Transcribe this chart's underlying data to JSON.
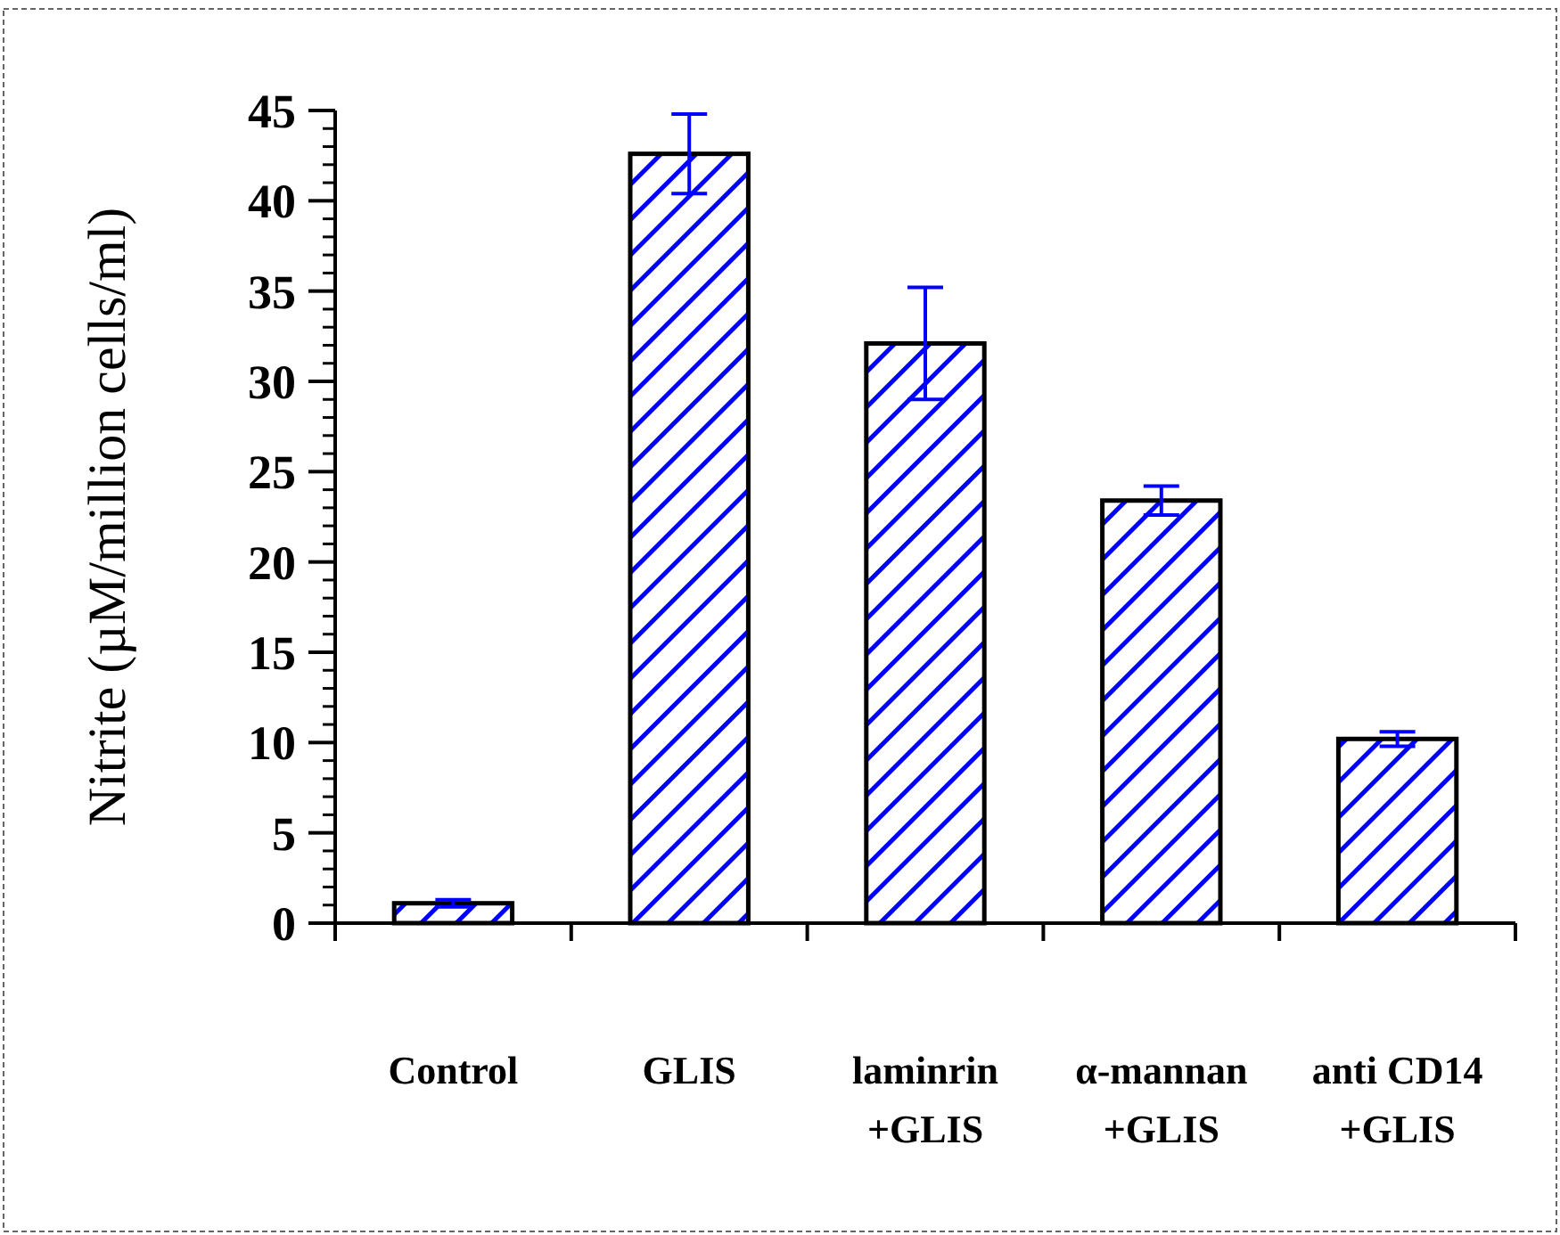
{
  "chart_data": {
    "type": "bar",
    "ylabel": "Nitrite (µM/million cells/ml)",
    "categories": [
      "Control",
      "GLIS",
      "laminrin\n+GLIS",
      "α-mannan\n+GLIS",
      "anti CD14\n+GLIS"
    ],
    "values": [
      1.1,
      42.6,
      32.1,
      23.4,
      10.2
    ],
    "errors": [
      0.2,
      2.2,
      3.1,
      0.8,
      0.4
    ],
    "color": "#0000ff",
    "ylim": [
      0,
      45
    ],
    "yticks": [
      0,
      {
        "value": 1,
        "label": null
      },
      {
        "value": 2,
        "label": null
      },
      {
        "value": 3,
        "label": null
      },
      {
        "value": 4,
        "label": null
      },
      5,
      {
        "value": 6,
        "label": null
      },
      {
        "value": 7,
        "label": null
      },
      {
        "value": 8,
        "label": null
      },
      {
        "value": 9,
        "label": null
      },
      10,
      {
        "value": 11,
        "label": null
      },
      {
        "value": 12,
        "label": null
      },
      {
        "value": 13,
        "label": null
      },
      {
        "value": 14,
        "label": null
      },
      15,
      {
        "value": 16,
        "label": null
      },
      {
        "value": 17,
        "label": null
      },
      {
        "value": 18,
        "label": null
      },
      {
        "value": 19,
        "label": null
      },
      20,
      {
        "value": 21,
        "label": null
      },
      {
        "value": 22,
        "label": null
      },
      {
        "value": 23,
        "label": null
      },
      {
        "value": 24,
        "label": null
      },
      25,
      {
        "value": 26,
        "label": null
      },
      {
        "value": 27,
        "label": null
      },
      {
        "value": 28,
        "label": null
      },
      {
        "value": 29,
        "label": null
      },
      30,
      {
        "value": 31,
        "label": null
      },
      {
        "value": 32,
        "label": null
      },
      {
        "value": 33,
        "label": null
      },
      {
        "value": 34,
        "label": null
      },
      35,
      {
        "value": 36,
        "label": null
      },
      {
        "value": 37,
        "label": null
      },
      {
        "value": 38,
        "label": null
      },
      {
        "value": 39,
        "label": null
      },
      40,
      {
        "value": 41,
        "label": null
      },
      {
        "value": 42,
        "label": null
      },
      {
        "value": 43,
        "label": null
      },
      {
        "value": 44,
        "label": null
      },
      45
    ],
    "grid": false
  }
}
